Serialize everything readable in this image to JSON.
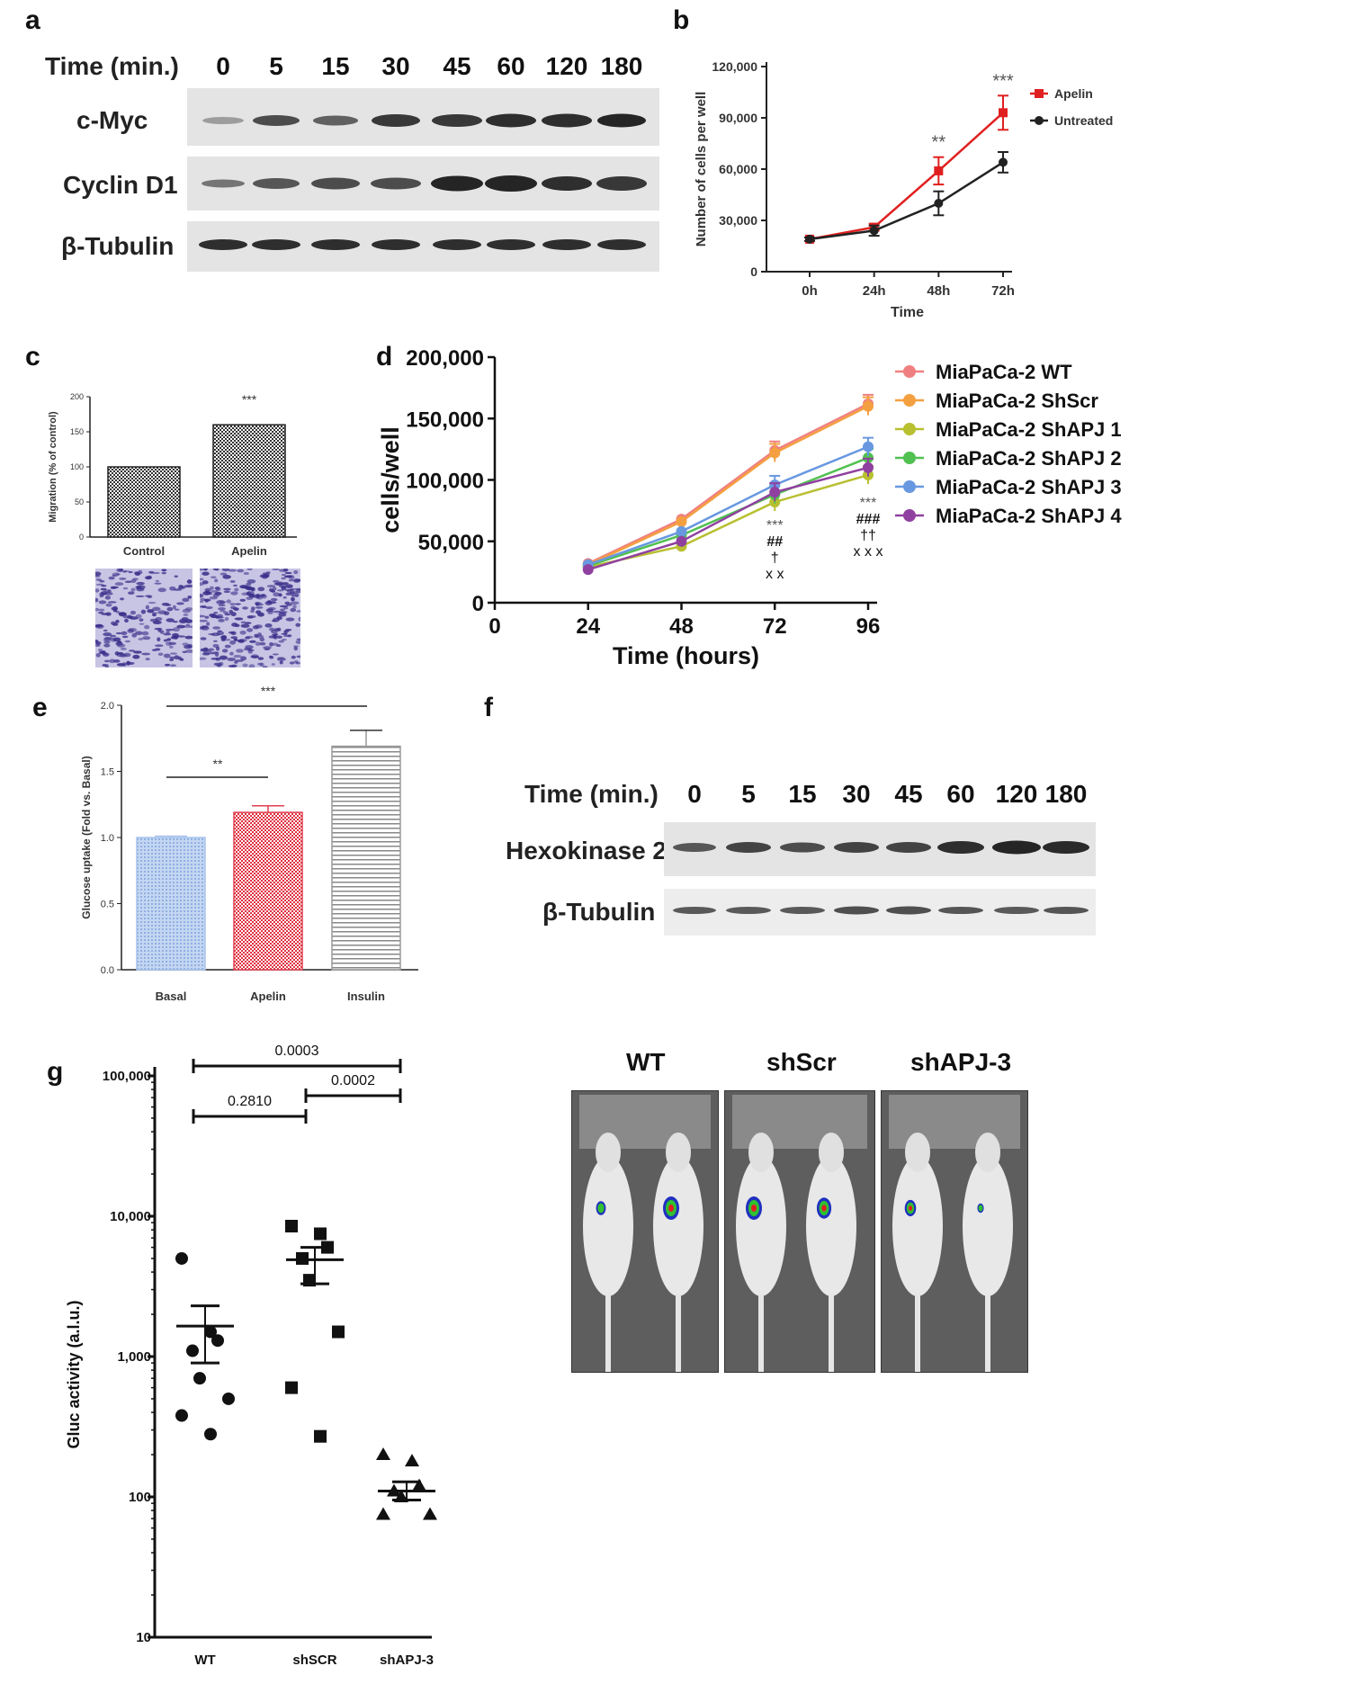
{
  "panels": {
    "a": {
      "letter": "a",
      "time_header": "Time (min.)",
      "times": [
        "0",
        "5",
        "15",
        "30",
        "45",
        "60",
        "120",
        "180"
      ],
      "rows": [
        "c-Myc",
        "Cyclin D1",
        "β-Tubulin"
      ]
    },
    "b": {
      "letter": "b"
    },
    "c": {
      "letter": "c"
    },
    "d": {
      "letter": "d"
    },
    "e": {
      "letter": "e"
    },
    "f": {
      "letter": "f",
      "time_header": "Time (min.)",
      "times": [
        "0",
        "5",
        "15",
        "30",
        "45",
        "60",
        "120",
        "180"
      ],
      "rows": [
        "Hexokinase 2",
        "β-Tubulin"
      ]
    },
    "g": {
      "letter": "g",
      "mouse_labels": [
        "WT",
        "shScr",
        "shAPJ-3"
      ]
    }
  },
  "chart_data": [
    {
      "id": "b",
      "type": "line",
      "xlabel": "Time",
      "ylabel": "Number of cells per well",
      "categories": [
        "0h",
        "24h",
        "48h",
        "72h"
      ],
      "yticks": [
        "0",
        "30,000",
        "60,000",
        "90,000",
        "120,000"
      ],
      "ylim": [
        0,
        120000
      ],
      "series": [
        {
          "name": "Apelin",
          "values": [
            19000,
            26000,
            59000,
            93000
          ],
          "errors": [
            1000,
            2000,
            8000,
            10000
          ],
          "color": "#e02020"
        },
        {
          "name": "Untreated",
          "values": [
            19000,
            24000,
            40000,
            64000
          ],
          "errors": [
            1000,
            3000,
            7000,
            6000
          ],
          "color": "#222222"
        }
      ],
      "annotations": [
        {
          "x": "48h",
          "text": "**"
        },
        {
          "x": "72h",
          "text": "***"
        }
      ],
      "legend": "top-right"
    },
    {
      "id": "c",
      "type": "bar",
      "ylabel": "Migration (% of control)",
      "categories": [
        "Control",
        "Apelin"
      ],
      "values": [
        100,
        160
      ],
      "yticks": [
        "0",
        "50",
        "100",
        "150",
        "200"
      ],
      "ylim": [
        0,
        200
      ],
      "annotations": [
        {
          "x": "Apelin",
          "text": "***"
        }
      ]
    },
    {
      "id": "d",
      "type": "line",
      "xlabel": "Time (hours)",
      "ylabel": "cells/well",
      "x": [
        24,
        48,
        72,
        96
      ],
      "xticks": [
        "0",
        "24",
        "48",
        "72",
        "96"
      ],
      "yticks": [
        "0",
        "50,000",
        "100,000",
        "150,000",
        "200,000"
      ],
      "ylim": [
        0,
        200000
      ],
      "series": [
        {
          "name": "MiaPaCa-2 WT",
          "values": [
            32000,
            68000,
            124000,
            162000
          ],
          "color": "#f08080"
        },
        {
          "name": "MiaPaCa-2 ShScr",
          "values": [
            31000,
            66000,
            122000,
            160000
          ],
          "color": "#f4a040"
        },
        {
          "name": "MiaPaCa-2 ShAPJ 1",
          "values": [
            29000,
            46000,
            82000,
            104000
          ],
          "color": "#b8c030"
        },
        {
          "name": "MiaPaCa-2 ShAPJ 2",
          "values": [
            30000,
            55000,
            88000,
            118000
          ],
          "color": "#50c050"
        },
        {
          "name": "MiaPaCa-2 ShAPJ 3",
          "values": [
            31000,
            58000,
            96000,
            127000
          ],
          "color": "#6898e0"
        },
        {
          "name": "MiaPaCa-2 ShAPJ 4",
          "values": [
            27000,
            50000,
            90000,
            110000
          ],
          "color": "#9040a0"
        }
      ],
      "annotations_72": [
        "***",
        "##",
        "†",
        "x x"
      ],
      "annotations_96": [
        "***",
        "###",
        "††",
        "x x x"
      ],
      "legend": "right"
    },
    {
      "id": "e",
      "type": "bar",
      "ylabel": "Glucose uptake (Fold vs. Basal)",
      "categories": [
        "Basal",
        "Apelin",
        "Insulin"
      ],
      "values": [
        1.0,
        1.19,
        1.69
      ],
      "errors": [
        0.01,
        0.05,
        0.12
      ],
      "yticks": [
        "0.0",
        "0.5",
        "1.0",
        "1.5",
        "2.0"
      ],
      "ylim": [
        0,
        2.0
      ],
      "colors": [
        "#a8c4ec",
        "#e04050",
        "#999999"
      ],
      "annotations": [
        "**",
        "***"
      ]
    },
    {
      "id": "g",
      "type": "scatter",
      "ylabel": "Gluc activity (a.l.u.)",
      "categories": [
        "WT",
        "shSCR",
        "shAPJ-3"
      ],
      "yscale": "log",
      "ylim": [
        10,
        100000
      ],
      "yticks": [
        "10",
        "100",
        "1,000",
        "10,000",
        "100,000"
      ],
      "points": {
        "WT": [
          5000,
          1500,
          1300,
          1100,
          700,
          500,
          380,
          280
        ],
        "shSCR": [
          8500,
          7500,
          6000,
          5000,
          3500,
          1500,
          600,
          270
        ],
        "shAPJ-3": [
          200,
          180,
          120,
          110,
          100,
          75,
          75
        ]
      },
      "means": [
        1650,
        4900,
        110
      ],
      "sem_low": [
        900,
        3300,
        95
      ],
      "sem_high": [
        2300,
        6000,
        128
      ],
      "markers": [
        "circle",
        "square",
        "triangle"
      ],
      "pvalues": [
        "0.0003",
        "0.2810",
        "0.0002"
      ]
    }
  ]
}
